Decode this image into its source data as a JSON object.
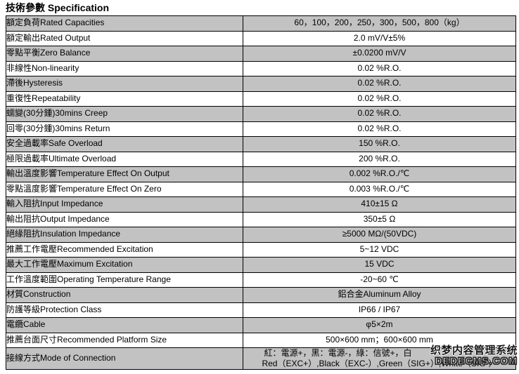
{
  "page": {
    "title": "技術參數 Specification"
  },
  "colors": {
    "shaded_row": "#c2c2c2",
    "border": "#000000",
    "background": "#ffffff"
  },
  "table": {
    "rows": [
      {
        "label": "額定負荷Rated Capacities",
        "value": "60，100，200，250，300，500，800（kg）"
      },
      {
        "label": "額定輸出Rated Output",
        "value": "2.0 mV/V±5%"
      },
      {
        "label": "零點平衡Zero Balance",
        "value": "±0.0200 mV/V"
      },
      {
        "label": "非線性Non-linearity",
        "value": "0.02 %R.O."
      },
      {
        "label": "滯後Hysteresis",
        "value": "0.02 %R.O."
      },
      {
        "label": "重復性Repeatability",
        "value": "0.02 %R.O."
      },
      {
        "label": "蠕變(30分鍾)30mins Creep",
        "value": "0.02 %R.O."
      },
      {
        "label": "回零(30分鍾)30mins Return",
        "value": "0.02 %R.O."
      },
      {
        "label": "安全過載率Safe Overload",
        "value": "150 %R.O."
      },
      {
        "label": "極限過載率Ultimate Overload",
        "value": "200 %R.O."
      },
      {
        "label": "輸出溫度影響Temperature Effect On Output",
        "value": "0.002 %R.O./℃"
      },
      {
        "label": "零點溫度影響Temperature Effect On Zero",
        "value": "0.003 %R.O./℃"
      },
      {
        "label": "輸入阻抗Input Impedance",
        "value": "410±15 Ω"
      },
      {
        "label": "輸出阻抗Output Impedance",
        "value": "350±5 Ω"
      },
      {
        "label": "絕緣阻抗Insulation Impedance",
        "value": "≥5000 MΩ/(50VDC)"
      },
      {
        "label": "推薦工作電壓Recommended Excitation",
        "value": "5~12 VDC"
      },
      {
        "label": "最大工作電壓Maximum Excitation",
        "value": "15 VDC"
      },
      {
        "label": "工作溫度範圍Operating Temperature Range",
        "value": "-20~60 ℃"
      },
      {
        "label": "材質Construction",
        "value": "鋁合金Aluminum Alloy"
      },
      {
        "label": "防護等級Protection Class",
        "value": "IP66 / IP67"
      },
      {
        "label": "電纜Cable",
        "value": "φ5×2m"
      },
      {
        "label": "推薦台面尺寸Recommended Platform Size",
        "value": "500×600 mm；600×600 mm"
      },
      {
        "label": "接線方式Mode of Connection",
        "value_lines": [
          "紅：電源+，黑：電源-，綠：信號+，白",
          "Red（EXC+）,Black（EXC-）,Green（SIG+）,White（SIG-）"
        ]
      }
    ]
  },
  "watermark": {
    "line1": "织梦内容管理系统",
    "line2": "DEDECMS.COM"
  }
}
